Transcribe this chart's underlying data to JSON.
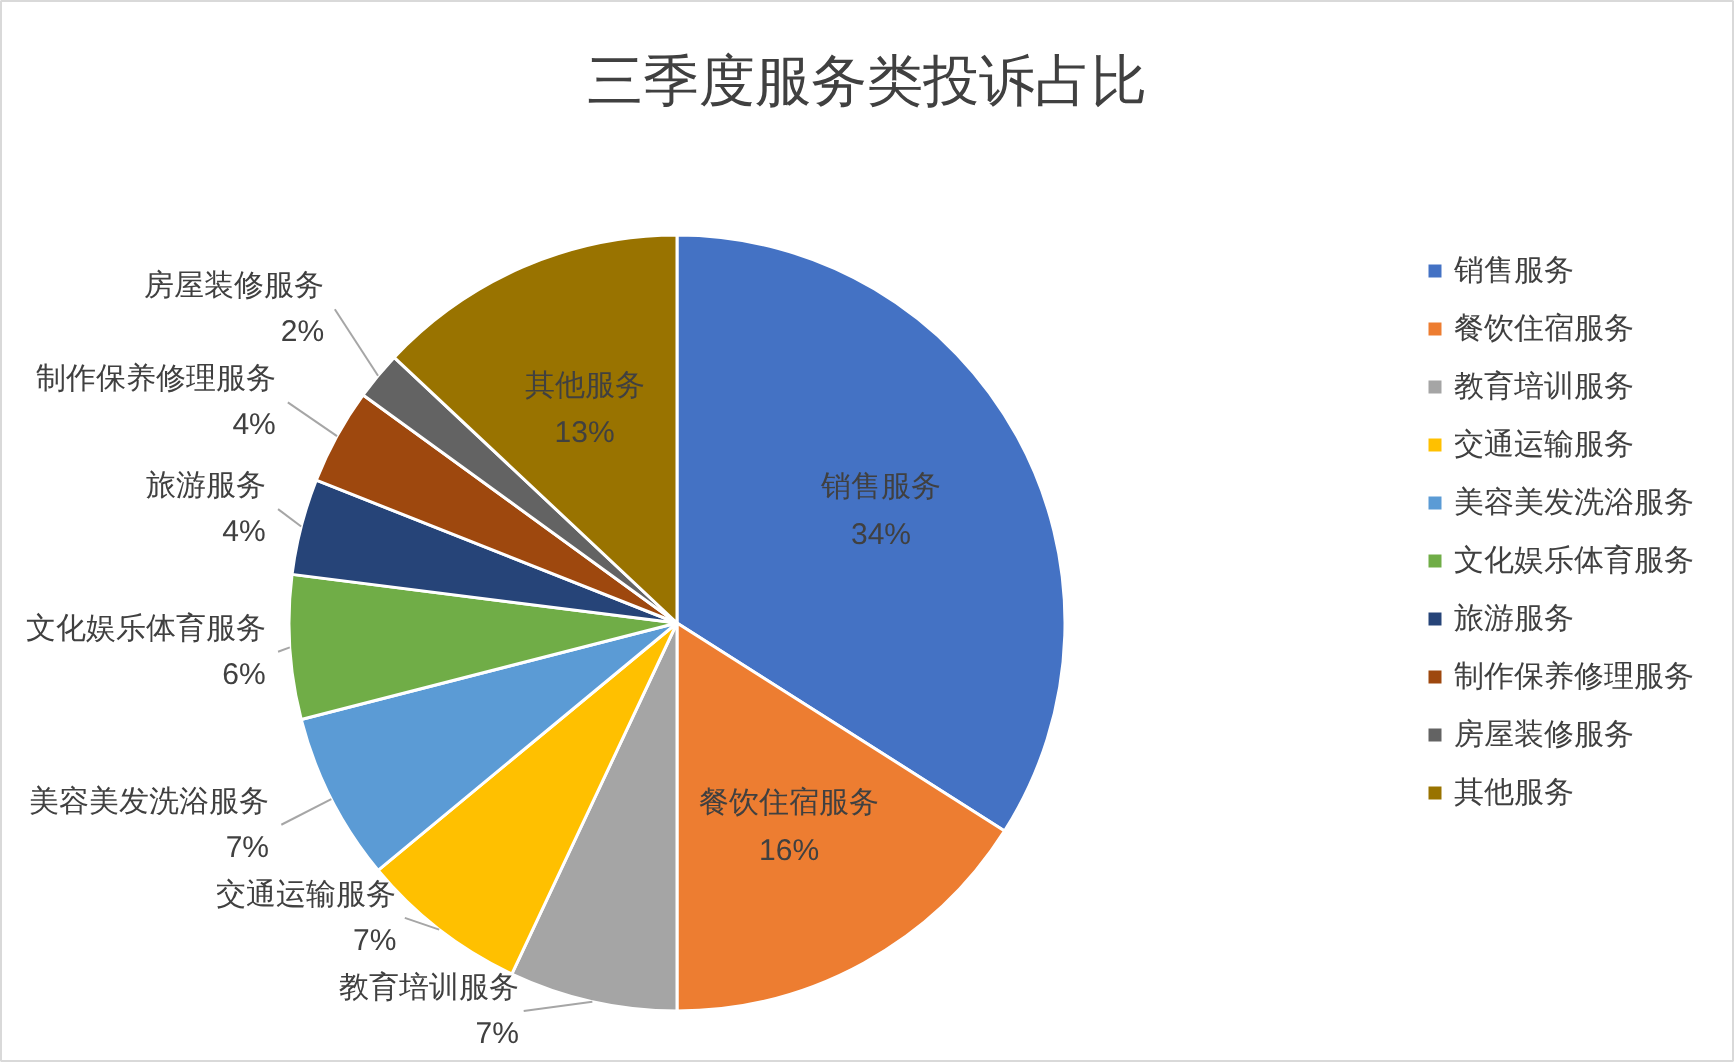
{
  "chart_data": {
    "type": "pie",
    "title": "三季度服务类投诉占比",
    "categories": [
      "销售服务",
      "餐饮住宿服务",
      "教育培训服务",
      "交通运输服务",
      "美容美发洗浴服务",
      "文化娱乐体育服务",
      "旅游服务",
      "制作保养修理服务",
      "房屋装修服务",
      "其他服务"
    ],
    "values": [
      34,
      16,
      7,
      7,
      7,
      6,
      4,
      4,
      2,
      13
    ],
    "value_labels": [
      "34%",
      "16%",
      "7%",
      "7%",
      "7%",
      "6%",
      "4%",
      "4%",
      "2%",
      "13%"
    ],
    "colors": [
      "#4472c4",
      "#ed7d31",
      "#a5a5a5",
      "#ffc000",
      "#5b9bd5",
      "#70ad47",
      "#264478",
      "#9e480e",
      "#636363",
      "#997300"
    ],
    "legend": "right"
  }
}
